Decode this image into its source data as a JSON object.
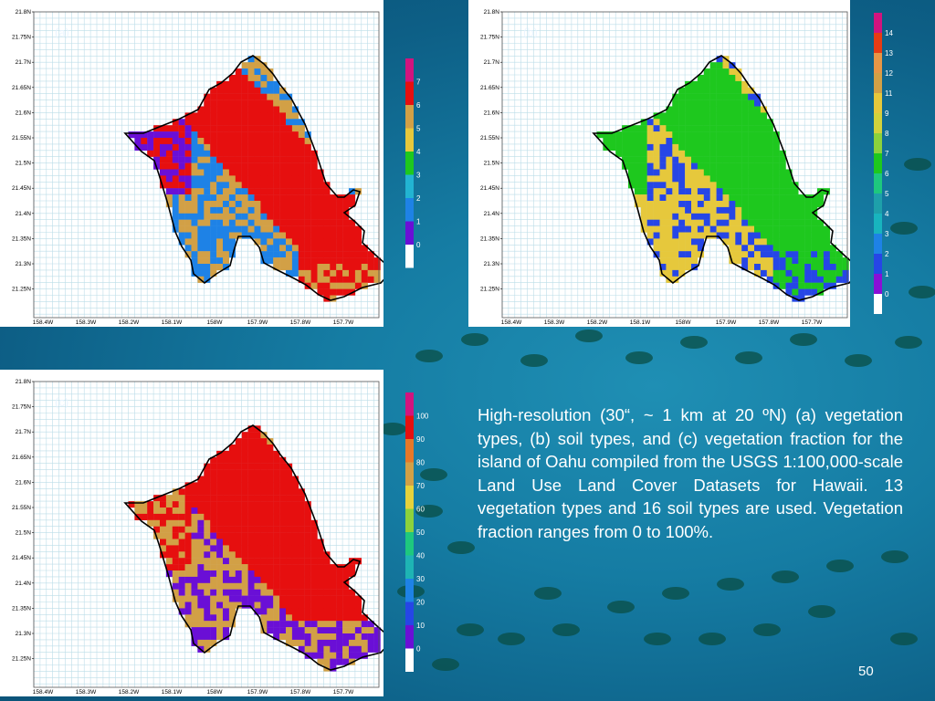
{
  "panels": [
    {
      "id": "a",
      "label": "(a)",
      "legend_ticks": [
        "0",
        "1",
        "2",
        "3",
        "4",
        "5",
        "6",
        "7"
      ],
      "legend_colors": [
        "#ffffff",
        "#6a0fd6",
        "#1e82e6",
        "#22b4d2",
        "#1ec81e",
        "#e6c83c",
        "#d2a046",
        "#e60f0f",
        "#d2147e"
      ]
    },
    {
      "id": "b",
      "label": "(b)",
      "legend_ticks": [
        "0",
        "1",
        "2",
        "3",
        "4",
        "5",
        "6",
        "7",
        "8",
        "9",
        "11",
        "12",
        "13",
        "14"
      ],
      "legend_colors": [
        "#ffffff",
        "#8a0fd6",
        "#2646e6",
        "#1e82e6",
        "#18b4be",
        "#1ea0aa",
        "#1ec87e",
        "#1ec81e",
        "#8cd23c",
        "#d2d23c",
        "#e6c83c",
        "#d2a046",
        "#e69646",
        "#e63c14",
        "#d2147e"
      ]
    },
    {
      "id": "c",
      "label": "(c)",
      "legend_ticks": [
        "0",
        "10",
        "20",
        "30",
        "40",
        "50",
        "60",
        "70",
        "80",
        "90",
        "100"
      ],
      "legend_colors": [
        "#ffffff",
        "#6a0fd6",
        "#2646e6",
        "#1e82e6",
        "#1eb4b4",
        "#1ec87e",
        "#8cd23c",
        "#e6d23c",
        "#d2a046",
        "#e67828",
        "#e60f0f",
        "#d2147e"
      ]
    }
  ],
  "axes": {
    "lat_labels": [
      "21.8N",
      "21.75N",
      "21.7N",
      "21.65N",
      "21.6N",
      "21.55N",
      "21.5N",
      "21.45N",
      "21.4N",
      "21.35N",
      "21.3N",
      "21.25N"
    ],
    "lon_labels": [
      "158.4W",
      "158.3W",
      "158.2W",
      "158.1W",
      "158W",
      "157.9W",
      "157.8W",
      "157.7W"
    ]
  },
  "caption": "High-resolution (30“, ~ 1 km at 20 ºN) (a) vegetation types, (b) soil types, and (c) vegetation fraction for the island of Oahu compiled from the USGS 1:100,000-scale Land Use Land Cover Datasets for Hawaii. 13 vegetation types and 16 soil types are used. Vegetation fraction ranges from 0 to 100%.",
  "page_number": "50"
}
